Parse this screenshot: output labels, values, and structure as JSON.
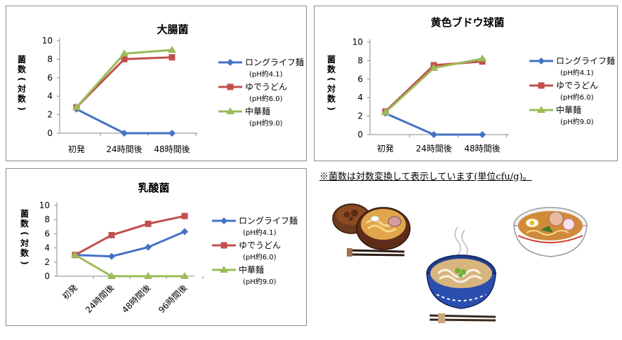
{
  "note": "※菌数は対数変換して表示しています(単位cfu/g)。",
  "series_styles": [
    {
      "color": "#4472c4",
      "marker": "diamond"
    },
    {
      "color": "#c0504d",
      "marker": "square"
    },
    {
      "color": "#9bbb59",
      "marker": "triangle"
    }
  ],
  "chart_data": [
    {
      "type": "line",
      "title": "大腸菌",
      "ylabel": "菌数(対数)",
      "ylabel_chars": [
        "菌",
        "数",
        "(",
        "対",
        "数",
        ")"
      ],
      "ylim": [
        0,
        10
      ],
      "yticks": [
        0,
        2,
        4,
        6,
        8,
        10
      ],
      "categories": [
        "初発",
        "24時間後",
        "48時間後"
      ],
      "tick_rotation": 0,
      "series": [
        {
          "name": "ロングライフ麺",
          "sub": "(pH約4.1)",
          "values": [
            2.6,
            0,
            0
          ]
        },
        {
          "name": "ゆでうどん",
          "sub": "(pH約6.0)",
          "values": [
            2.8,
            8.0,
            8.2
          ]
        },
        {
          "name": "中華麺",
          "sub": "(pH約9.0)",
          "values": [
            2.8,
            8.6,
            9.0
          ]
        }
      ],
      "grid": false,
      "legend": "right"
    },
    {
      "type": "line",
      "title": "黄色ブドウ球菌",
      "ylabel": "菌数(対数)",
      "ylabel_chars": [
        "菌",
        "数",
        "(",
        "対",
        "数",
        ")"
      ],
      "ylim": [
        0,
        10
      ],
      "yticks": [
        0,
        2,
        4,
        6,
        8,
        10
      ],
      "categories": [
        "初発",
        "24時間後",
        "48時間後"
      ],
      "tick_rotation": 0,
      "series": [
        {
          "name": "ロングライフ麺",
          "sub": "(pH約4.1)",
          "values": [
            2.3,
            0,
            0
          ]
        },
        {
          "name": "ゆでうどん",
          "sub": "(pH約6.0)",
          "values": [
            2.5,
            7.5,
            7.9
          ]
        },
        {
          "name": "中華麺",
          "sub": "(pH約9.0)",
          "values": [
            2.4,
            7.2,
            8.2
          ]
        }
      ],
      "grid": false,
      "legend": "right"
    },
    {
      "type": "line",
      "title": "乳酸菌",
      "ylabel": "菌数(対数)",
      "ylabel_chars": [
        "菌",
        "数",
        "(",
        "対",
        "数",
        ")"
      ],
      "ylim": [
        0,
        10
      ],
      "yticks": [
        0,
        2,
        4,
        6,
        8,
        10
      ],
      "categories": [
        "初発",
        "24時間後",
        "48時間後",
        "96時間後"
      ],
      "tick_rotation": -45,
      "series": [
        {
          "name": "ロングライフ麺",
          "sub": "(pH約4.1)",
          "values": [
            3.0,
            2.8,
            4.1,
            6.3
          ]
        },
        {
          "name": "ゆでうどん",
          "sub": "(pH約6.0)",
          "values": [
            3.0,
            5.8,
            7.4,
            8.5
          ]
        },
        {
          "name": "中華麺",
          "sub": "(pH約9.0)",
          "values": [
            3.0,
            0,
            0,
            0
          ]
        }
      ],
      "grid": false,
      "legend": "right"
    }
  ]
}
